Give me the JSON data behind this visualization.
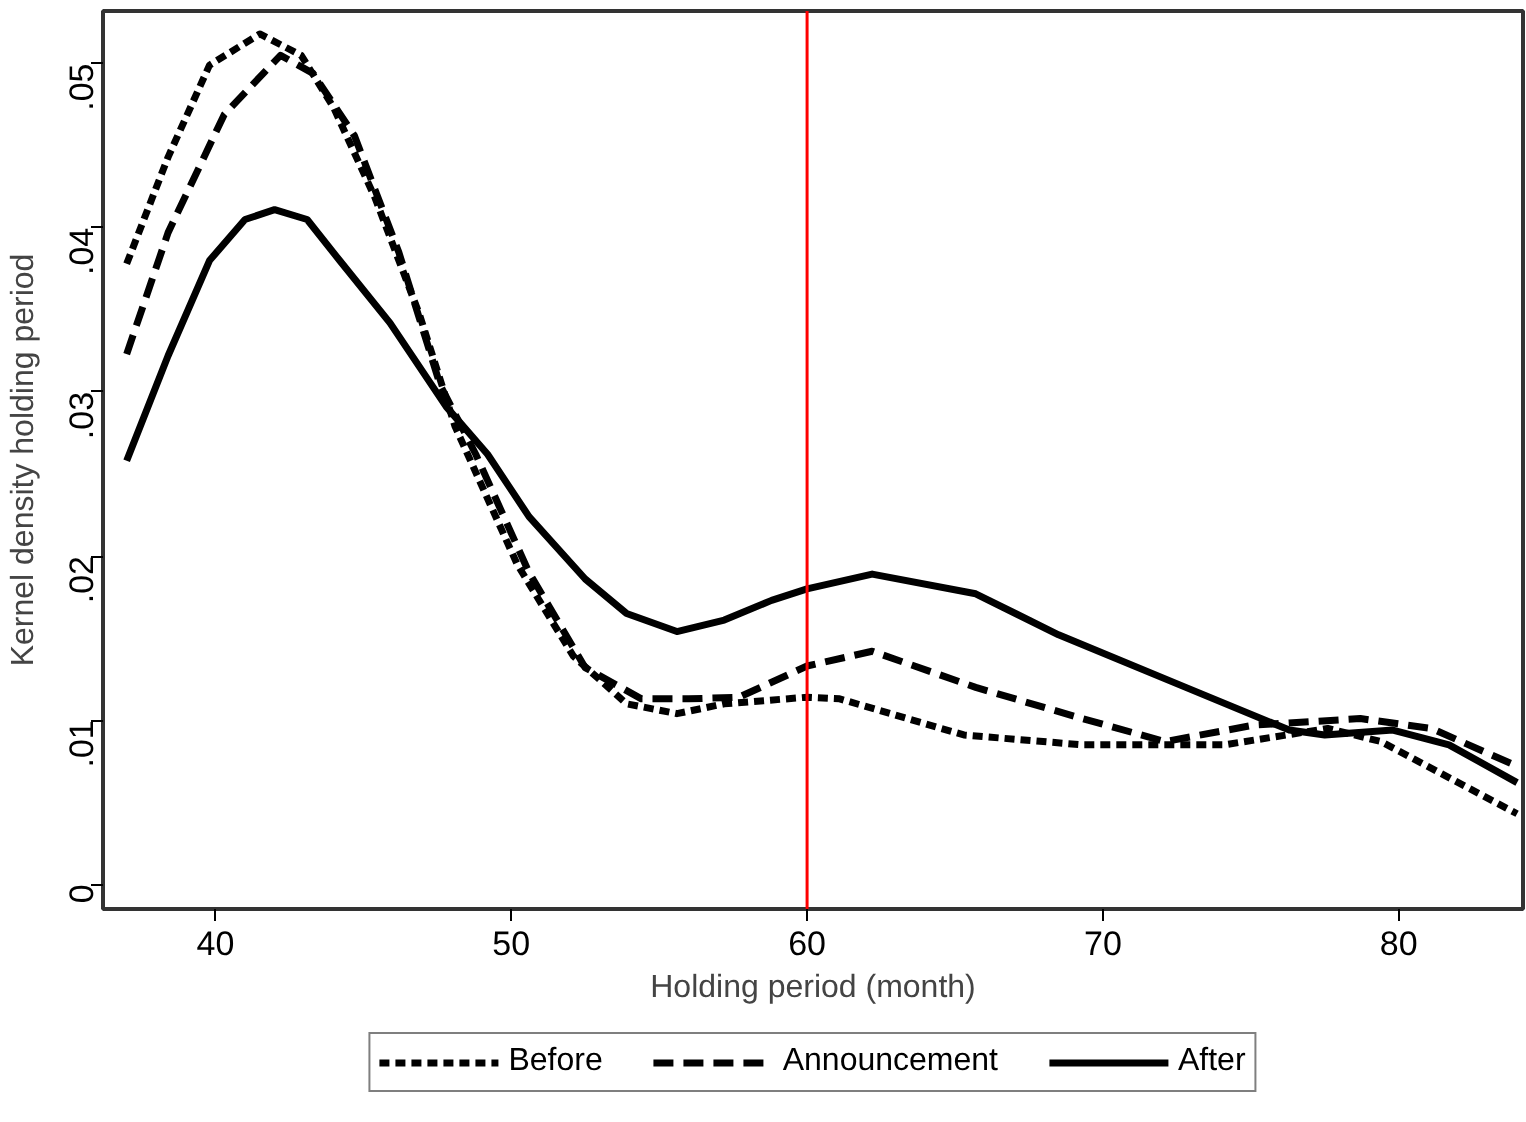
{
  "chart_data": {
    "type": "line",
    "xlabel": "Holding period (month)",
    "ylabel": "Kernel density holding period",
    "xlim": [
      36.2,
      84.2
    ],
    "ylim": [
      -0.0015,
      0.0532
    ],
    "xticks": [
      40,
      50,
      60,
      70,
      80
    ],
    "yticks": [
      {
        "value": 0,
        "label": "0"
      },
      {
        "value": 0.01,
        "label": ".01"
      },
      {
        "value": 0.02,
        "label": ".02"
      },
      {
        "value": 0.03,
        "label": ".03"
      },
      {
        "value": 0.04,
        "label": ".04"
      },
      {
        "value": 0.05,
        "label": ".05"
      }
    ],
    "grid": false,
    "legend": "bottom",
    "marker": "none",
    "ref_lines": [
      {
        "axis": "x",
        "value": 60,
        "color": "#ff0000",
        "line_style": "solid"
      }
    ],
    "series": [
      {
        "name": "Before",
        "color": "#000000",
        "line_style": "dotted",
        "x": [
          37.0,
          38.4,
          39.8,
          41.5,
          42.9,
          44.0,
          45.4,
          46.9,
          48.1,
          50.2,
          52.1,
          53.9,
          55.6,
          57.2,
          60.0,
          61.1,
          65.3,
          69.3,
          74.1,
          77.6,
          79.4,
          84
        ],
        "values": [
          0.0378,
          0.0443,
          0.0499,
          0.0518,
          0.0505,
          0.0473,
          0.0418,
          0.0347,
          0.0279,
          0.0195,
          0.0139,
          0.011,
          0.0104,
          0.011,
          0.0114,
          0.0113,
          0.0091,
          0.0085,
          0.0085,
          0.0095,
          0.0087,
          0.0043
        ]
      },
      {
        "name": "Announcement",
        "color": "#000000",
        "line_style": "dashed",
        "x": [
          37.0,
          38.4,
          40.3,
          42.2,
          43.3,
          44.7,
          46.2,
          47.6,
          48.8,
          50.6,
          52.5,
          54.4,
          56.0,
          57.7,
          60.0,
          62.2,
          65.7,
          69.3,
          72.1,
          75.1,
          78.7,
          81.1,
          84
        ],
        "values": [
          0.0323,
          0.0397,
          0.0469,
          0.0505,
          0.0494,
          0.0456,
          0.0385,
          0.0304,
          0.0262,
          0.019,
          0.0132,
          0.0113,
          0.0113,
          0.0114,
          0.0133,
          0.0142,
          0.012,
          0.0101,
          0.0087,
          0.0097,
          0.0101,
          0.0095,
          0.0072
        ]
      },
      {
        "name": "After",
        "color": "#000000",
        "line_style": "solid",
        "x": [
          37.0,
          38.4,
          39.8,
          41.0,
          42.0,
          43.1,
          44.2,
          45.9,
          47.8,
          49.2,
          50.6,
          52.5,
          53.9,
          55.6,
          57.2,
          58.8,
          60.0,
          62.2,
          65.7,
          68.5,
          72.8,
          76.3,
          77.5,
          79.8,
          81.7,
          84
        ],
        "values": [
          0.0258,
          0.0322,
          0.038,
          0.0405,
          0.0411,
          0.0405,
          0.038,
          0.0342,
          0.0291,
          0.0262,
          0.0224,
          0.0186,
          0.0165,
          0.0154,
          0.0161,
          0.0173,
          0.018,
          0.0189,
          0.0177,
          0.0152,
          0.012,
          0.0094,
          0.0091,
          0.0094,
          0.0085,
          0.0062
        ]
      }
    ]
  }
}
